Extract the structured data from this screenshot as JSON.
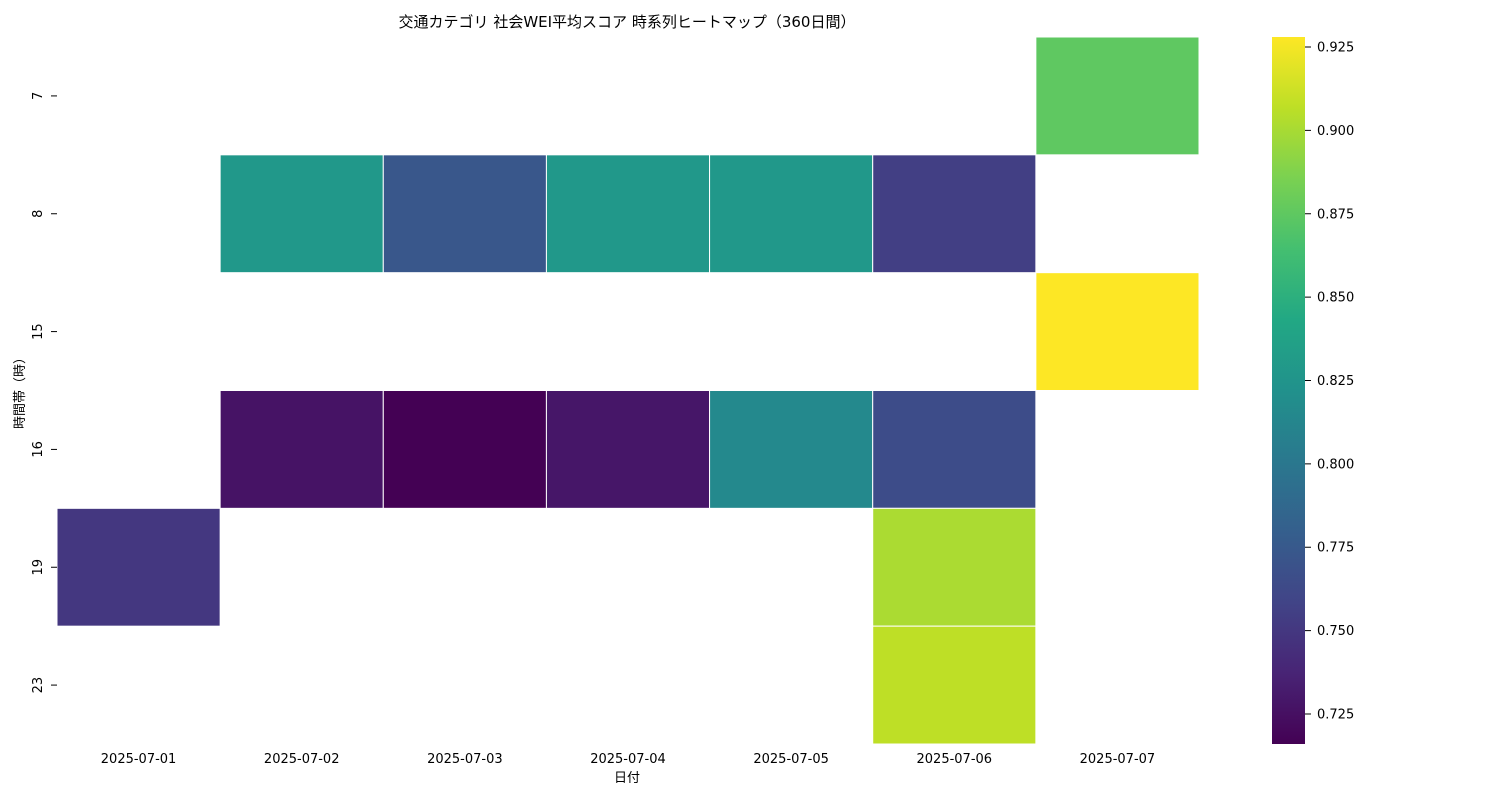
{
  "chart_data": {
    "type": "heatmap",
    "title": "交通カテゴリ 社会WEI平均スコア 時系列ヒートマップ（360日間）",
    "xlabel": "日付",
    "ylabel": "時間帯（時）",
    "x_categories": [
      "2025-07-01",
      "2025-07-02",
      "2025-07-03",
      "2025-07-04",
      "2025-07-05",
      "2025-07-06",
      "2025-07-07"
    ],
    "y_categories": [
      "7",
      "8",
      "15",
      "16",
      "19",
      "23"
    ],
    "values": [
      [
        null,
        null,
        null,
        null,
        null,
        null,
        0.875
      ],
      [
        null,
        0.828,
        0.773,
        0.828,
        0.828,
        0.755,
        null
      ],
      [
        null,
        null,
        null,
        null,
        null,
        null,
        0.928
      ],
      [
        null,
        0.727,
        0.716,
        0.729,
        0.815,
        0.765,
        null
      ],
      [
        0.75,
        null,
        null,
        null,
        null,
        0.901,
        null
      ],
      [
        null,
        null,
        null,
        null,
        null,
        0.907,
        null
      ]
    ],
    "colormap": "viridis",
    "colorbar": {
      "min": 0.716,
      "max": 0.928,
      "ticks": [
        "0.725",
        "0.750",
        "0.775",
        "0.800",
        "0.825",
        "0.850",
        "0.875",
        "0.900",
        "0.925"
      ]
    },
    "cell_border_color": "#ffffff"
  }
}
